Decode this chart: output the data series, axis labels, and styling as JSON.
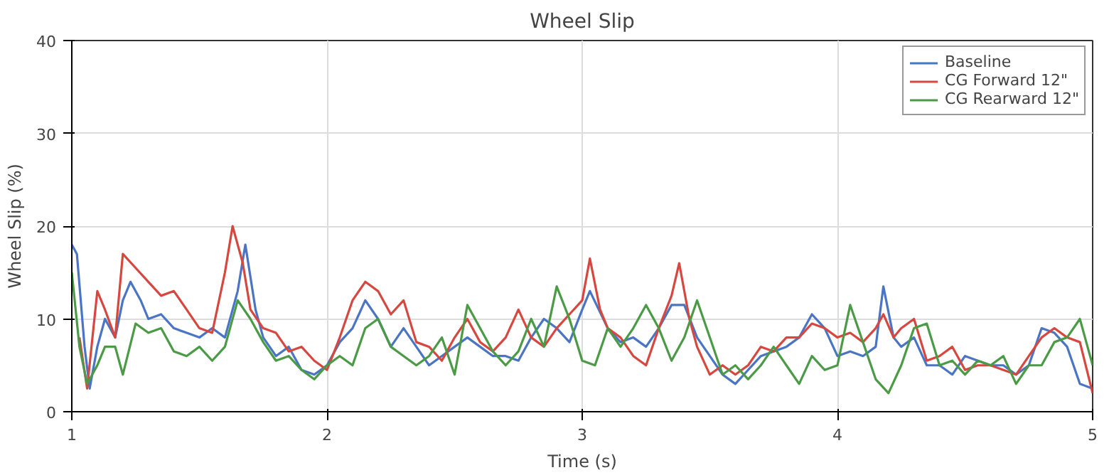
{
  "chart_data": {
    "type": "line",
    "title": "Wheel Slip",
    "xlabel": "Time (s)",
    "ylabel": "Wheel Slip (%)",
    "xlim": [
      1,
      5
    ],
    "ylim": [
      0,
      40
    ],
    "xticks": [
      1,
      2,
      3,
      4,
      5
    ],
    "yticks": [
      0,
      10,
      20,
      30,
      40
    ],
    "grid": true,
    "legend": "top right",
    "line_style": "solid",
    "series": [
      {
        "name": "Baseline",
        "color": "#4a74c4",
        "x": [
          1.0,
          1.02,
          1.05,
          1.07,
          1.1,
          1.13,
          1.17,
          1.2,
          1.23,
          1.27,
          1.3,
          1.35,
          1.4,
          1.45,
          1.5,
          1.55,
          1.6,
          1.65,
          1.68,
          1.72,
          1.75,
          1.8,
          1.85,
          1.9,
          1.95,
          2.0,
          2.05,
          2.1,
          2.15,
          2.2,
          2.25,
          2.3,
          2.35,
          2.4,
          2.45,
          2.5,
          2.55,
          2.6,
          2.65,
          2.7,
          2.75,
          2.8,
          2.85,
          2.9,
          2.95,
          3.0,
          3.03,
          3.1,
          3.15,
          3.2,
          3.25,
          3.3,
          3.35,
          3.4,
          3.45,
          3.5,
          3.55,
          3.6,
          3.65,
          3.7,
          3.75,
          3.8,
          3.85,
          3.9,
          3.95,
          4.0,
          4.05,
          4.1,
          4.15,
          4.18,
          4.22,
          4.25,
          4.3,
          4.35,
          4.4,
          4.45,
          4.5,
          4.55,
          4.6,
          4.65,
          4.7,
          4.75,
          4.8,
          4.85,
          4.9,
          4.95,
          5.0
        ],
        "values": [
          18,
          17,
          7,
          2.5,
          7,
          10,
          8,
          12,
          14,
          12,
          10,
          10.5,
          9,
          8.5,
          8,
          9,
          8,
          13,
          18,
          11,
          8,
          6,
          7,
          4.5,
          4,
          5,
          7.5,
          9,
          12,
          10,
          7,
          9,
          7,
          5,
          6,
          7,
          8,
          7,
          6,
          6,
          5.5,
          8,
          10,
          9,
          7.5,
          11,
          13,
          9,
          7.5,
          8,
          7,
          9,
          11.5,
          11.5,
          8,
          6,
          4,
          3,
          4.5,
          6,
          6.5,
          7,
          8,
          10.5,
          9,
          6,
          6.5,
          6,
          7,
          13.5,
          8,
          7,
          8,
          5,
          5,
          4,
          6,
          5.5,
          5,
          5,
          4,
          5,
          9,
          8.5,
          7,
          3,
          2.5
        ]
      },
      {
        "name": "CG Forward 12\"",
        "color": "#d6483f",
        "x": [
          1.03,
          1.06,
          1.1,
          1.13,
          1.17,
          1.2,
          1.25,
          1.3,
          1.35,
          1.4,
          1.45,
          1.5,
          1.55,
          1.6,
          1.63,
          1.67,
          1.7,
          1.75,
          1.8,
          1.85,
          1.9,
          1.95,
          2.0,
          2.05,
          2.1,
          2.15,
          2.2,
          2.25,
          2.3,
          2.35,
          2.4,
          2.45,
          2.5,
          2.55,
          2.6,
          2.65,
          2.7,
          2.75,
          2.8,
          2.85,
          2.9,
          2.95,
          3.0,
          3.03,
          3.07,
          3.1,
          3.15,
          3.2,
          3.25,
          3.3,
          3.35,
          3.38,
          3.42,
          3.45,
          3.5,
          3.55,
          3.6,
          3.65,
          3.7,
          3.75,
          3.8,
          3.85,
          3.9,
          3.95,
          4.0,
          4.05,
          4.1,
          4.15,
          4.18,
          4.22,
          4.25,
          4.3,
          4.35,
          4.4,
          4.45,
          4.5,
          4.55,
          4.6,
          4.65,
          4.7,
          4.75,
          4.8,
          4.85,
          4.9,
          4.95,
          5.0
        ],
        "values": [
          8,
          2.5,
          13,
          11,
          8,
          17,
          15.5,
          14,
          12.5,
          13,
          11,
          9,
          8.5,
          15,
          20,
          16,
          11,
          9,
          8.5,
          6.5,
          7,
          5.5,
          4.5,
          8,
          12,
          14,
          13,
          10.5,
          12,
          7.5,
          7,
          5.5,
          8,
          10,
          7.5,
          6.5,
          8,
          11,
          8,
          7,
          9,
          10.5,
          12,
          16.5,
          11,
          9,
          8,
          6,
          5,
          9,
          12.5,
          16,
          10,
          7,
          4,
          5,
          4,
          5,
          7,
          6.5,
          8,
          8,
          9.5,
          9,
          8,
          8.5,
          7.5,
          9,
          10.5,
          8,
          9,
          10,
          5.5,
          6,
          7,
          4.5,
          5,
          5,
          4.5,
          4,
          6,
          8,
          9,
          8,
          7.5,
          2
        ]
      },
      {
        "name": "CG Rearward 12\"",
        "color": "#4a9a46",
        "x": [
          1.0,
          1.03,
          1.06,
          1.1,
          1.13,
          1.17,
          1.2,
          1.25,
          1.3,
          1.35,
          1.4,
          1.45,
          1.5,
          1.55,
          1.6,
          1.65,
          1.7,
          1.75,
          1.8,
          1.85,
          1.9,
          1.95,
          2.0,
          2.05,
          2.1,
          2.15,
          2.2,
          2.25,
          2.3,
          2.35,
          2.4,
          2.45,
          2.5,
          2.55,
          2.6,
          2.65,
          2.7,
          2.75,
          2.8,
          2.85,
          2.9,
          2.95,
          3.0,
          3.05,
          3.1,
          3.15,
          3.2,
          3.25,
          3.3,
          3.35,
          3.4,
          3.45,
          3.5,
          3.55,
          3.6,
          3.65,
          3.7,
          3.75,
          3.8,
          3.85,
          3.9,
          3.95,
          4.0,
          4.05,
          4.1,
          4.15,
          4.2,
          4.25,
          4.3,
          4.35,
          4.4,
          4.45,
          4.5,
          4.55,
          4.6,
          4.65,
          4.7,
          4.75,
          4.8,
          4.85,
          4.9,
          4.95,
          5.0
        ],
        "values": [
          15,
          7,
          3,
          5,
          7,
          7,
          4,
          9.5,
          8.5,
          9,
          6.5,
          6,
          7,
          5.5,
          7,
          12,
          10,
          7.5,
          5.5,
          6,
          4.5,
          3.5,
          5,
          6,
          5,
          9,
          10,
          7,
          6,
          5,
          6,
          8,
          4,
          11.5,
          9,
          6.5,
          5,
          6.5,
          10,
          7,
          13.5,
          10,
          5.5,
          5,
          9,
          7,
          9,
          11.5,
          9,
          5.5,
          8,
          12,
          8,
          4,
          5,
          3.5,
          5,
          7,
          5,
          3,
          6,
          4.5,
          5,
          11.5,
          7.5,
          3.5,
          2,
          5,
          9,
          9.5,
          5,
          5.5,
          4,
          5.5,
          5,
          6,
          3,
          5,
          5,
          7.5,
          8,
          10,
          5
        ]
      }
    ]
  }
}
